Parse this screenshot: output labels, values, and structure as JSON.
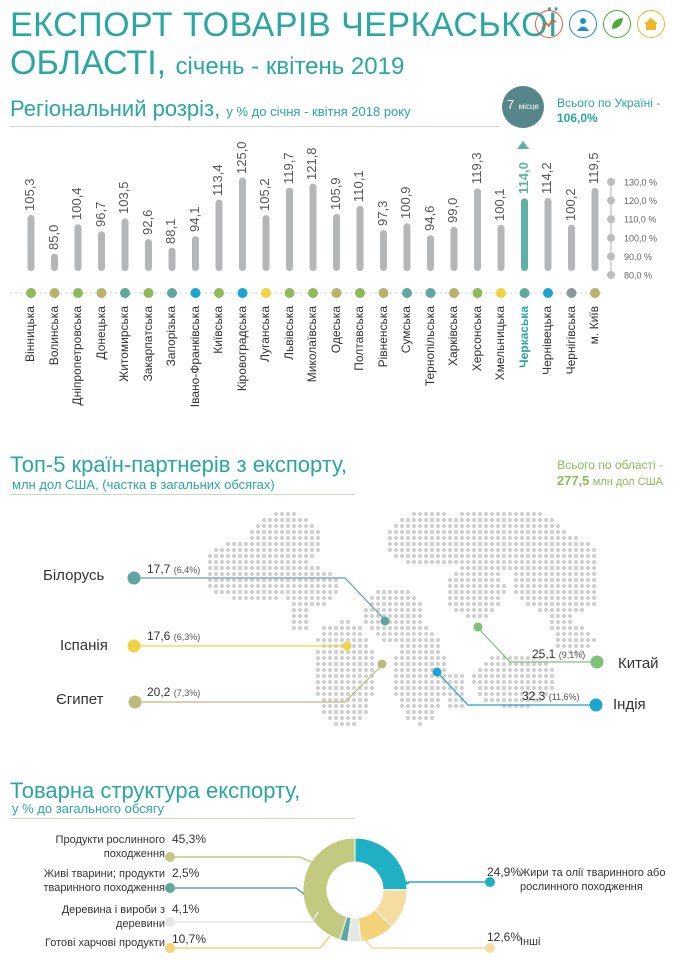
{
  "header": {
    "title_line1": "ЕКСПОРТ ТОВАРІВ ЧЕРКАСЬКОЇ",
    "title_line2": "ОБЛАСТІ,",
    "period": "січень - квітень 2019",
    "icons": [
      "chart-line-icon",
      "person-icon",
      "leaf-icon",
      "home-icon"
    ]
  },
  "regional": {
    "title": "Регіональний розріз,",
    "subtitle": "у % до січня - квітня 2018 року",
    "rank_number": "7",
    "rank_word": "місце",
    "ukraine_label": "Всього по Україні -",
    "ukraine_value": "106,0%"
  },
  "partners": {
    "title": "Топ-5 країн-партнерів з експорту,",
    "subtitle": "млн дол США, (частка в загальних обсягах)",
    "total_label": "Всього по області -",
    "total_value": "277,5",
    "total_unit": "млн дол США"
  },
  "structure": {
    "title": "Товарна структура експорту,",
    "subtitle": "у % до загального обсягу"
  },
  "colors": {
    "teal": "#29a7a0",
    "green": "#8dbb58",
    "bar_gray": "#b4b6b8",
    "highlight_bar": "#5fb1a6"
  },
  "chart_data": [
    {
      "type": "bar",
      "title": "Регіональний розріз, у % до січня - квітня 2018 року",
      "categories": [
        "Вінницька",
        "Волинська",
        "Дніпропетровська",
        "Донецька",
        "Житомирська",
        "Закарпатська",
        "Запорізька",
        "Івано-Франківська",
        "Київська",
        "Кіровоградська",
        "Луганська",
        "Львівська",
        "Миколаївська",
        "Одеська",
        "Полтавська",
        "Рівненська",
        "Сумська",
        "Тернопільська",
        "Харківська",
        "Херсонська",
        "Хмельницька",
        "Черкаська",
        "Чернівецька",
        "Чернігівська",
        "м. Київ"
      ],
      "values": [
        105.3,
        85.0,
        100.4,
        96.7,
        103.5,
        92.6,
        88.1,
        94.1,
        113.4,
        125.0,
        105.2,
        119.7,
        121.8,
        105.9,
        110.1,
        97.3,
        100.9,
        94.6,
        99.0,
        119.3,
        100.1,
        114.0,
        114.2,
        100.2,
        119.5
      ],
      "value_labels": [
        "105,3",
        "85,0",
        "100,4",
        "96,7",
        "103,5",
        "92,6",
        "88,1",
        "94,1",
        "113,4",
        "125,0",
        "105,2",
        "119,7",
        "121,8",
        "105,9",
        "110,1",
        "97,3",
        "100,9",
        "94,6",
        "99,0",
        "119,3",
        "100,1",
        "114,0",
        "114,2",
        "100,2",
        "119,5"
      ],
      "dot_colors": [
        "#8dbb58",
        "#b8b26b",
        "#8dbb58",
        "#b8b26b",
        "#5fa8a0",
        "#8dbb58",
        "#5fa8a0",
        "#1ba5cf",
        "#8dbb58",
        "#1ba5cf",
        "#f2d244",
        "#8dbb58",
        "#8dbb58",
        "#b8b26b",
        "#8dbb58",
        "#b8b26b",
        "#5fa8a0",
        "#5fa8a0",
        "#b8b26b",
        "#8dbb58",
        "#f2d244",
        "#5fa8a0",
        "#1ba5cf",
        "#8a9a9a",
        "#b8b26b"
      ],
      "highlight": "Черкаська",
      "yaxis_ticks": [
        "130,0 %",
        "120,0 %",
        "110,0 %",
        "100,0 %",
        "90,0 %",
        "80,0 %"
      ],
      "ylim": [
        80,
        130
      ]
    },
    {
      "type": "map",
      "title": "Топ-5 країн-партнерів з експорту, млн дол США",
      "entries": [
        {
          "country": "Білорусь",
          "value": "17,7",
          "share": "(6,4%)",
          "color": "#62a4a2"
        },
        {
          "country": "Іспанія",
          "value": "17,6",
          "share": "(6,3%)",
          "color": "#f2d244"
        },
        {
          "country": "Єгипет",
          "value": "20,2",
          "share": "(7,3%)",
          "color": "#bcbb7e"
        },
        {
          "country": "Китай",
          "value": "25,1",
          "share": "(9,1%)",
          "color": "#7fc27c"
        },
        {
          "country": "Індія",
          "value": "32,3",
          "share": "(11,6%)",
          "color": "#1ba5cf"
        }
      ]
    },
    {
      "type": "pie",
      "title": "Товарна структура експорту, у % до загального обсягу",
      "slices": [
        {
          "label": "Продукти рослинного походження",
          "value": 45.3,
          "value_label": "45,3%",
          "color": "#c3c97f"
        },
        {
          "label": "Жири та олії тваринного або рослинного походження",
          "value": 24.9,
          "value_label": "24,9%",
          "color": "#1fb0c4"
        },
        {
          "label": "Інші",
          "value": 12.6,
          "value_label": "12,6%",
          "color": "#f6dca0"
        },
        {
          "label": "Готові харчові продукти",
          "value": 10.7,
          "value_label": "10,7%",
          "color": "#f4d27a"
        },
        {
          "label": "Деревина і вироби з деревини",
          "value": 4.1,
          "value_label": "4,1%",
          "color": "#e4e7e4"
        },
        {
          "label": "Живі тварини; продукти тваринного походження",
          "value": 2.5,
          "value_label": "2,5%",
          "color": "#5fa8a0"
        }
      ]
    }
  ]
}
